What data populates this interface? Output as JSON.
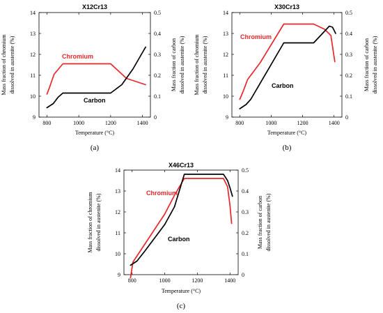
{
  "chart_data": [
    {
      "type": "line",
      "panel_label": "(a)",
      "title": "X12Cr13",
      "xlabel": "Temperature (°C)",
      "ylabel_left": [
        "Mass fraction of chromium",
        "dissolved in austenite (%)"
      ],
      "ylabel_right": [
        "Mass fraction of carbon",
        "dissolved in austenite (%)"
      ],
      "xlim": [
        750,
        1450
      ],
      "ylim_left": [
        9,
        14
      ],
      "ylim_right": [
        0,
        0.5
      ],
      "x_ticks": [
        800,
        1000,
        1200,
        1400
      ],
      "y_ticks_left": [
        9,
        10,
        11,
        12,
        13,
        14
      ],
      "y_ticks_right": [
        0,
        0.1,
        0.2,
        0.3,
        0.4,
        0.5
      ],
      "series": [
        {
          "name": "Chromium",
          "axis": "left",
          "color": "#e8262b",
          "x": [
            800,
            815,
            845,
            900,
            1200,
            1300,
            1420
          ],
          "y": [
            10.1,
            10.4,
            11.05,
            11.55,
            11.55,
            10.85,
            10.55
          ]
        },
        {
          "name": "Carbon",
          "axis": "right",
          "color": "#000000",
          "x": [
            800,
            840,
            870,
            900,
            1200,
            1270,
            1340,
            1420
          ],
          "y": [
            0.045,
            0.065,
            0.095,
            0.115,
            0.115,
            0.155,
            0.23,
            0.335
          ]
        }
      ]
    },
    {
      "type": "line",
      "panel_label": "(b)",
      "title": "X30Cr13",
      "xlabel": "Temperature (°C)",
      "ylabel_left": [
        "Mass fraction of chromium",
        "dissolved in austenite (%)"
      ],
      "ylabel_right": [
        "Mass fraction of carbon",
        "dissolved in austenite (%)"
      ],
      "xlim": [
        750,
        1450
      ],
      "ylim_left": [
        9,
        14
      ],
      "ylim_right": [
        0,
        0.5
      ],
      "x_ticks": [
        800,
        1000,
        1200,
        1400
      ],
      "y_ticks_left": [
        9,
        10,
        11,
        12,
        13,
        14
      ],
      "y_ticks_right": [
        0,
        0.1,
        0.2,
        0.3,
        0.4,
        0.5
      ],
      "series": [
        {
          "name": "Chromium",
          "axis": "left",
          "color": "#e8262b",
          "x": [
            800,
            820,
            850,
            930,
            1080,
            1270,
            1340,
            1380,
            1405
          ],
          "y": [
            9.85,
            10.2,
            10.8,
            11.6,
            13.45,
            13.45,
            13.2,
            12.9,
            11.65
          ]
        },
        {
          "name": "Carbon",
          "axis": "right",
          "color": "#000000",
          "x": [
            800,
            840,
            870,
            1080,
            1270,
            1320,
            1370,
            1390,
            1410
          ],
          "y": [
            0.04,
            0.06,
            0.085,
            0.355,
            0.355,
            0.395,
            0.435,
            0.43,
            0.4
          ]
        }
      ]
    },
    {
      "type": "line",
      "panel_label": "(c)",
      "title": "X46Cr13",
      "xlabel": "Temperature (°C)",
      "ylabel_left": [
        "Mass fraction of chromium",
        "dissolved in austenite (%)"
      ],
      "ylabel_right": [
        "Mass fraction of carbon",
        "dissolved in austenite (%)"
      ],
      "xlim": [
        750,
        1450
      ],
      "ylim_left": [
        9,
        14
      ],
      "ylim_right": [
        0,
        0.5
      ],
      "x_ticks": [
        800,
        1000,
        1200,
        1400
      ],
      "y_ticks_left": [
        9,
        10,
        11,
        12,
        13,
        14
      ],
      "y_ticks_right": [
        0,
        0.1,
        0.2,
        0.3,
        0.4,
        0.5
      ],
      "series": [
        {
          "name": "Chromium",
          "axis": "left",
          "color": "#e8262b",
          "x": [
            790,
            805,
            860,
            1000,
            1060,
            1120,
            1360,
            1385,
            1400,
            1410
          ],
          "y": [
            8.85,
            9.6,
            10.25,
            11.9,
            12.8,
            13.6,
            13.6,
            13.2,
            12.3,
            11.45
          ]
        },
        {
          "name": "Carbon",
          "axis": "right",
          "color": "#000000",
          "x": [
            790,
            830,
            880,
            1000,
            1060,
            1120,
            1360,
            1385,
            1400,
            1415
          ],
          "y": [
            0.045,
            0.065,
            0.115,
            0.24,
            0.325,
            0.48,
            0.48,
            0.45,
            0.415,
            0.375
          ]
        }
      ]
    }
  ]
}
